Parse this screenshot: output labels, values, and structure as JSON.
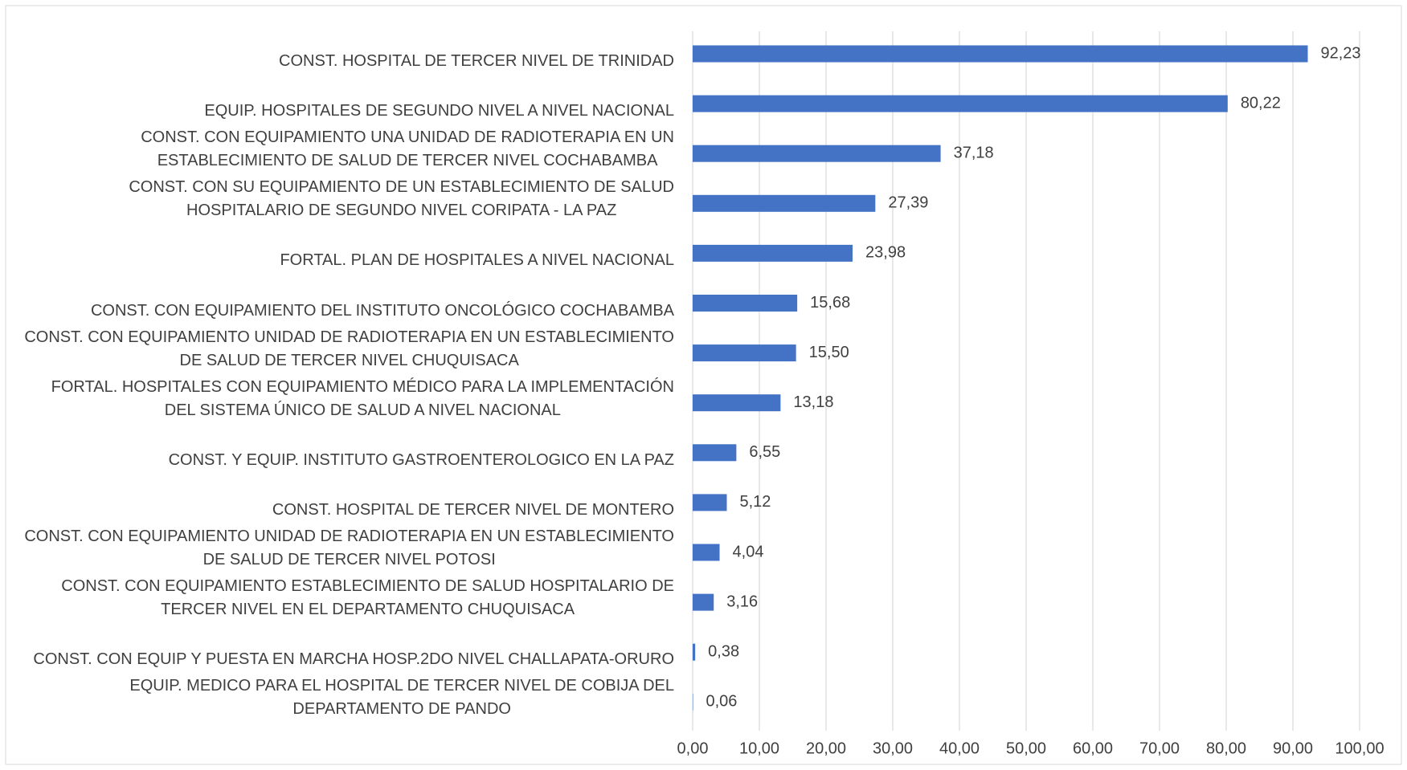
{
  "chart_data": {
    "type": "barh",
    "categories": [
      "CONST. HOSPITAL DE TERCER NIVEL DE TRINIDAD",
      "EQUIP. HOSPITALES DE SEGUNDO NIVEL A NIVEL NACIONAL",
      "CONST. CON EQUIPAMIENTO UNA UNIDAD DE RADIOTERAPIA EN UN\nESTABLECIMIENTO DE SALUD DE TERCER NIVEL  COCHABAMBA",
      "CONST. CON SU EQUIPAMIENTO DE UN ESTABLECIMIENTO DE SALUD\nHOSPITALARIO DE SEGUNDO NIVEL CORIPATA - LA PAZ",
      "FORTAL. PLAN DE HOSPITALES  A NIVEL NACIONAL",
      "CONST. CON EQUIPAMIENTO DEL INSTITUTO ONCOLÓGICO COCHABAMBA",
      "CONST. CON EQUIPAMIENTO UNIDAD DE RADIOTERAPIA EN UN ESTABLECIMIENTO\nDE SALUD DE TERCER NIVEL CHUQUISACA",
      "FORTAL. HOSPITALES CON EQUIPAMIENTO MÉDICO PARA LA IMPLEMENTACIÓN\nDEL SISTEMA ÚNICO DE SALUD A NIVEL NACIONAL",
      "CONST. Y EQUIP. INSTITUTO GASTROENTEROLOGICO EN LA PAZ",
      "CONST. HOSPITAL DE TERCER NIVEL DE MONTERO",
      "CONST. CON EQUIPAMIENTO UNIDAD DE RADIOTERAPIA EN UN ESTABLECIMIENTO\nDE SALUD DE TERCER NIVEL POTOSI",
      "CONST. CON EQUIPAMIENTO ESTABLECIMIENTO DE SALUD HOSPITALARIO DE\nTERCER NIVEL EN EL DEPARTAMENTO CHUQUISACA",
      "CONST. CON EQUIP Y PUESTA EN MARCHA HOSP.2DO NIVEL CHALLAPATA-ORURO",
      "EQUIP. MEDICO PARA EL HOSPITAL DE TERCER NIVEL DE COBIJA DEL\nDEPARTAMENTO DE PANDO"
    ],
    "values": [
      92.23,
      80.22,
      37.18,
      27.39,
      23.98,
      15.68,
      15.5,
      13.18,
      6.55,
      5.12,
      4.04,
      3.16,
      0.38,
      0.06
    ],
    "value_labels": [
      "92,23",
      "80,22",
      "37,18",
      "27,39",
      "23,98",
      "15,68",
      "15,50",
      "13,18",
      "6,55",
      "5,12",
      "4,04",
      "3,16",
      "0,38",
      "0,06"
    ],
    "color": "#4472c4",
    "xlim": [
      0,
      100
    ],
    "xticks": [
      {
        "value": 0,
        "label": "0,00"
      },
      {
        "value": 10,
        "label": "10,00"
      },
      {
        "value": 20,
        "label": "20,00"
      },
      {
        "value": 30,
        "label": "30,00"
      },
      {
        "value": 40,
        "label": "40,00"
      },
      {
        "value": 50,
        "label": "50,00"
      },
      {
        "value": 60,
        "label": "60,00"
      },
      {
        "value": 70,
        "label": "70,00"
      },
      {
        "value": 80,
        "label": "80,00"
      },
      {
        "value": 90,
        "label": "90,00"
      },
      {
        "value": 100,
        "label": "100,00"
      }
    ],
    "grid": true
  }
}
